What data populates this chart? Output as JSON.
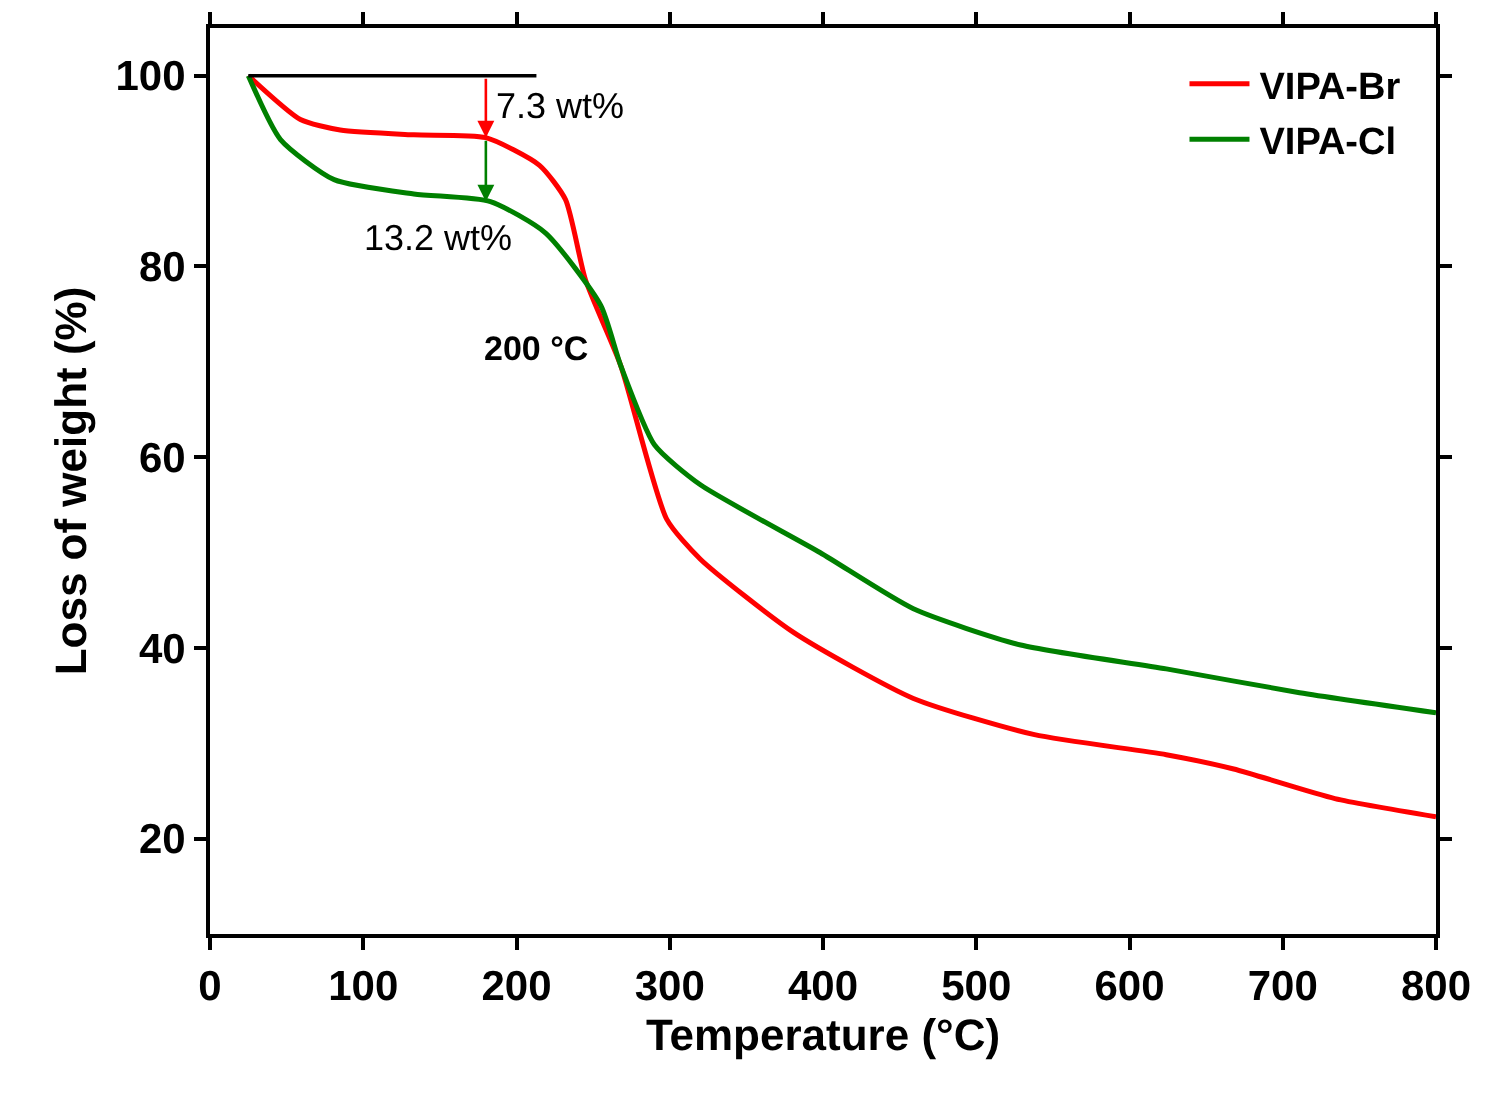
{
  "chart_data": {
    "type": "line",
    "xlabel": "Temperature (°C)",
    "ylabel": "Loss of weight (%)",
    "xlim": [
      0,
      800
    ],
    "xticks": [
      0,
      100,
      200,
      300,
      400,
      500,
      600,
      700,
      800
    ],
    "ylim": [
      10,
      105
    ],
    "yticks": [
      20,
      40,
      60,
      80,
      100
    ],
    "grid": false,
    "legend": "top right",
    "marker": "none",
    "line_style": "solid",
    "series": [
      {
        "name": "VIPA-Br",
        "color": "#ff0000",
        "x": [
          25,
          59,
          85,
          133,
          180,
          215,
          232,
          245,
          268,
          298,
          320,
          381,
          459,
          538,
          624,
          668,
          734,
          800
        ],
        "values": [
          100,
          95.4,
          94.3,
          93.8,
          93.5,
          90.6,
          87,
          78.6,
          69.6,
          53.5,
          49.3,
          41.6,
          34.7,
          30.9,
          28.8,
          27.3,
          24.2,
          22.3
        ]
      },
      {
        "name": "VIPA-Cl",
        "color": "#008000",
        "x": [
          25,
          46,
          81,
          133,
          183,
          219,
          255,
          268,
          290,
          320,
          398,
          459,
          529,
          624,
          711,
          800
        ],
        "values": [
          100,
          93.3,
          89.1,
          87.6,
          86.8,
          83.5,
          75.9,
          69.6,
          61.3,
          57.1,
          50,
          44.1,
          40.3,
          37.8,
          35.3,
          33.2
        ]
      },
      {
        "color": "#000000",
        "x": [
          25,
          213
        ],
        "values": [
          100,
          100
        ]
      }
    ],
    "annotations": [
      {
        "text": "7.3 wt%",
        "x": 180,
        "y": 93.5
      },
      {
        "text": "13.2 wt%",
        "x": 180,
        "y": 86.8
      },
      "200 °C"
    ]
  }
}
